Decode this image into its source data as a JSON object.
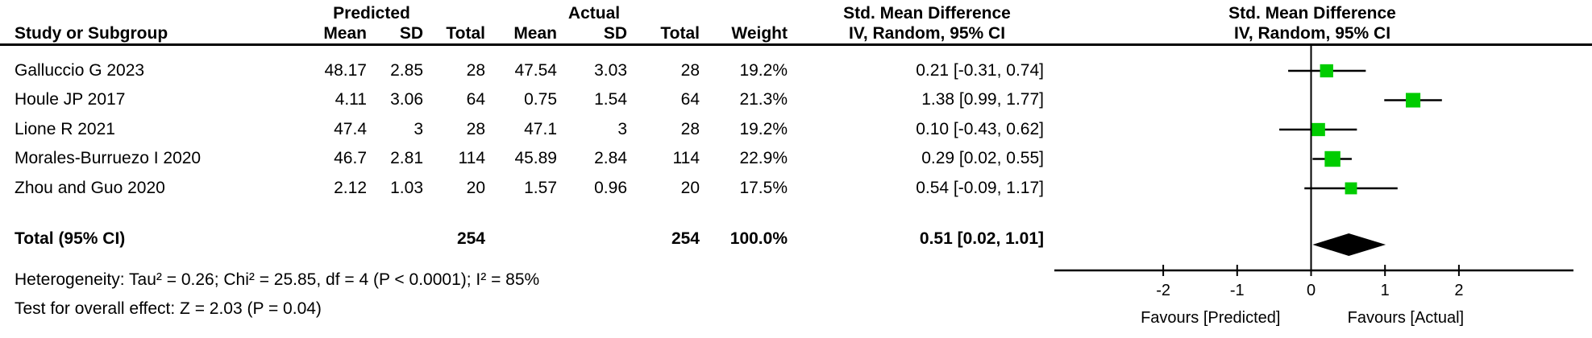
{
  "table": {
    "group_headers": {
      "predicted": "Predicted",
      "actual": "Actual"
    },
    "col_headers": {
      "study": "Study or Subgroup",
      "mean": "Mean",
      "sd": "SD",
      "total": "Total",
      "weight": "Weight",
      "smd": "Std. Mean Difference",
      "method": "IV, Random, 95% CI"
    },
    "plot_headers": {
      "line1": "Std. Mean Difference",
      "line2": "IV, Random, 95% CI"
    },
    "studies": [
      {
        "name": "Galluccio G 2023",
        "p_mean": "48.17",
        "p_sd": "2.85",
        "p_total": "28",
        "a_mean": "47.54",
        "a_sd": "3.03",
        "a_total": "28",
        "weight": "19.2%",
        "smd_ci": "0.21 [-0.31, 0.74]"
      },
      {
        "name": "Houle JP 2017",
        "p_mean": "4.11",
        "p_sd": "3.06",
        "p_total": "64",
        "a_mean": "0.75",
        "a_sd": "1.54",
        "a_total": "64",
        "weight": "21.3%",
        "smd_ci": "1.38 [0.99, 1.77]"
      },
      {
        "name": "Lione R 2021",
        "p_mean": "47.4",
        "p_sd": "3",
        "p_total": "28",
        "a_mean": "47.1",
        "a_sd": "3",
        "a_total": "28",
        "weight": "19.2%",
        "smd_ci": "0.10 [-0.43, 0.62]"
      },
      {
        "name": "Morales-Burruezo I 2020",
        "p_mean": "46.7",
        "p_sd": "2.81",
        "p_total": "114",
        "a_mean": "45.89",
        "a_sd": "2.84",
        "a_total": "114",
        "weight": "22.9%",
        "smd_ci": "0.29 [0.02, 0.55]"
      },
      {
        "name": "Zhou and Guo 2020",
        "p_mean": "2.12",
        "p_sd": "1.03",
        "p_total": "20",
        "a_mean": "1.57",
        "a_sd": "0.96",
        "a_total": "20",
        "weight": "17.5%",
        "smd_ci": "0.54 [-0.09, 1.17]"
      }
    ],
    "total": {
      "label": "Total (95% CI)",
      "p_total": "254",
      "a_total": "254",
      "weight": "100.0%",
      "smd_ci": "0.51 [0.02, 1.01]"
    },
    "footnotes": {
      "heterogeneity": "Heterogeneity: Tau² = 0.26; Chi² = 25.85, df = 4 (P < 0.0001); I² = 85%",
      "overall_effect": "Test for overall effect: Z = 2.03 (P = 0.04)"
    }
  },
  "chart_data": {
    "type": "forest",
    "title": "Std. Mean Difference",
    "method_label": "IV, Random, 95% CI",
    "x_ticks": [
      -2,
      -1,
      0,
      1,
      2
    ],
    "xlim": [
      -3.45,
      3.5
    ],
    "axis_labels": {
      "left": "Favours [Predicted]",
      "right": "Favours [Actual]"
    },
    "marker_color": "#00CC00",
    "line_color": "#000000",
    "studies": [
      {
        "name": "Galluccio G 2023",
        "est": 0.21,
        "lo": -0.31,
        "hi": 0.74,
        "weight_pct": 19.2
      },
      {
        "name": "Houle JP 2017",
        "est": 1.38,
        "lo": 0.99,
        "hi": 1.77,
        "weight_pct": 21.3
      },
      {
        "name": "Lione R 2021",
        "est": 0.1,
        "lo": -0.43,
        "hi": 0.62,
        "weight_pct": 19.2
      },
      {
        "name": "Morales-Burruezo I 2020",
        "est": 0.29,
        "lo": 0.02,
        "hi": 0.55,
        "weight_pct": 22.9
      },
      {
        "name": "Zhou and Guo 2020",
        "est": 0.54,
        "lo": -0.09,
        "hi": 1.17,
        "weight_pct": 17.5
      }
    ],
    "total": {
      "est": 0.51,
      "lo": 0.02,
      "hi": 1.01
    }
  }
}
